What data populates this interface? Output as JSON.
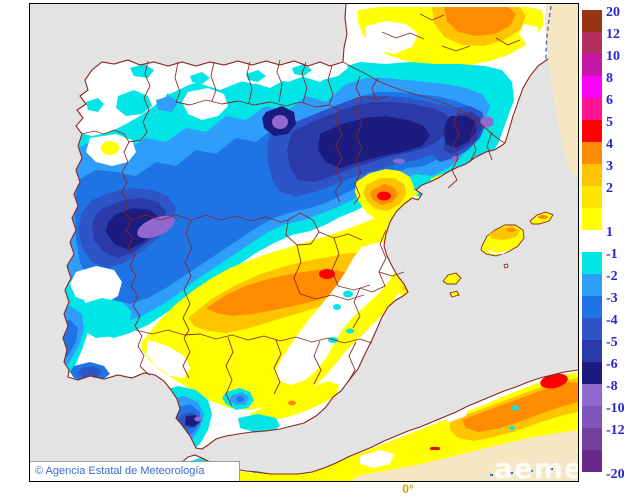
{
  "map": {
    "attribution": "© Agencia Estatal de Meteorología",
    "watermark": "aemet",
    "bottom_axis_label": "0°"
  },
  "legend": {
    "label_color": "#2626cf",
    "positive": [
      {
        "label": "20",
        "color": "#993311"
      },
      {
        "label": "12",
        "color": "#b53060"
      },
      {
        "label": "10",
        "color": "#c618a8"
      },
      {
        "label": "8",
        "color": "#ff00ff"
      },
      {
        "label": "6",
        "color": "#ff1493"
      },
      {
        "label": "5",
        "color": "#ff0000"
      },
      {
        "label": "4",
        "color": "#ff8c00"
      },
      {
        "label": "3",
        "color": "#ffc400"
      },
      {
        "label": "2",
        "color": "#ffe400"
      },
      {
        "label": "1",
        "color": "#ffff00"
      }
    ],
    "negative": [
      {
        "label": "-1",
        "color": "#00e6e6"
      },
      {
        "label": "-2",
        "color": "#2f9efa"
      },
      {
        "label": "-3",
        "color": "#1e74e4"
      },
      {
        "label": "-4",
        "color": "#2e55c8"
      },
      {
        "label": "-5",
        "color": "#2a3aa8"
      },
      {
        "label": "-6",
        "color": "#1c1c80"
      },
      {
        "label": "-8",
        "color": "#9168d0"
      },
      {
        "label": "-10",
        "color": "#7e55b8"
      },
      {
        "label": "-12",
        "color": "#7440a0"
      },
      {
        "label": "-20",
        "color": "#6a2a8a"
      }
    ]
  },
  "palette": {
    "sea": "#e3e3e3",
    "land": "#ffffff",
    "outside": "#f5e7c3",
    "border": "#8b2222",
    "dashed": "#3b66c8",
    "p1": "#ffff00",
    "p3": "#ffc400",
    "p4": "#ff8c00",
    "p5": "#ff0000",
    "n1": "#00e6e6",
    "n2": "#2f9efa",
    "n3": "#1e74e4",
    "n4": "#2e55c8",
    "n5": "#2a3aa8",
    "n6": "#1c1c80",
    "n8": "#9168d0"
  }
}
